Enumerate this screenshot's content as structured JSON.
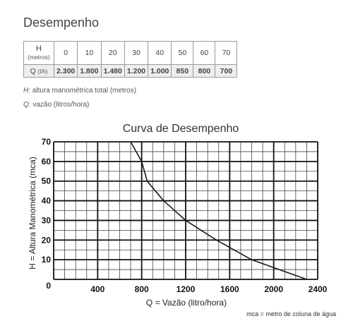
{
  "section_title": "Desempenho",
  "table": {
    "row_h_label": "H",
    "row_h_unit": "(metros)",
    "row_q_label": "Q",
    "row_q_unit": "(l/h)",
    "h_values": [
      "0",
      "10",
      "20",
      "30",
      "40",
      "50",
      "60",
      "70"
    ],
    "q_values": [
      "2.300",
      "1.800",
      "1.480",
      "1.200",
      "1.000",
      "850",
      "800",
      "700"
    ]
  },
  "notes": {
    "h_symbol": "H",
    "h_text": ": altura manométrica total (metros)",
    "q_symbol": "Q",
    "q_text": ": vazão (litros/hora)"
  },
  "chart_data": {
    "type": "line",
    "title": "Curva de Desempenho",
    "xlabel": "Q = Vazão (litro/hora)",
    "ylabel": "H = Altura Manométrica (mca)",
    "footnote": "mca = metro de coluna de água",
    "xlim": [
      0,
      2400
    ],
    "ylim": [
      0,
      70
    ],
    "x_ticks": [
      0,
      400,
      800,
      1200,
      1600,
      2000,
      2400
    ],
    "y_ticks": [
      0,
      10,
      20,
      30,
      40,
      50,
      60,
      70
    ],
    "grid": true,
    "series": [
      {
        "x": [
          2300,
          1800,
          1480,
          1200,
          1000,
          850,
          800,
          700
        ],
        "y": [
          0,
          10,
          20,
          30,
          40,
          50,
          60,
          70
        ]
      }
    ],
    "line_color": "#1a1a1a"
  }
}
